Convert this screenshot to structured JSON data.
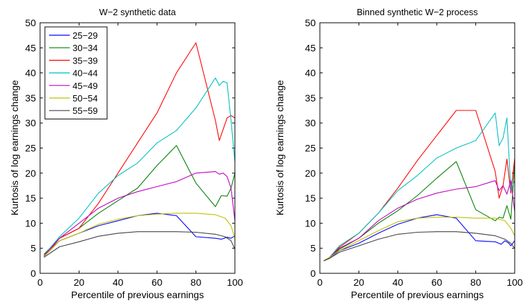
{
  "chart_data": [
    {
      "type": "line",
      "title": "W−2 synthetic data",
      "xlabel": "Percentile of previous earnings",
      "ylabel": "Kurtosis of log earnings change",
      "xlim": [
        0,
        100
      ],
      "ylim": [
        0,
        50
      ],
      "xticks": [
        "0",
        "20",
        "40",
        "60",
        "80",
        "100"
      ],
      "yticks": [
        "0",
        "5",
        "10",
        "15",
        "20",
        "25",
        "30",
        "35",
        "40",
        "45",
        "50"
      ],
      "grid": false,
      "legend": "top-left",
      "series": [
        {
          "name": "25−29",
          "color": "#0000ff",
          "x": [
            2,
            5,
            10,
            20,
            30,
            40,
            50,
            60,
            70,
            80,
            90,
            93,
            96,
            98,
            100
          ],
          "y": [
            3.5,
            4.5,
            6.5,
            8,
            9.5,
            10.5,
            11.5,
            12,
            11.5,
            7.3,
            7,
            6.8,
            7.2,
            7,
            7.5
          ]
        },
        {
          "name": "30−34",
          "color": "#008000",
          "x": [
            2,
            5,
            10,
            20,
            30,
            40,
            50,
            60,
            70,
            80,
            90,
            93,
            96,
            98,
            100
          ],
          "y": [
            3.8,
            5,
            7,
            9,
            12,
            14.5,
            17,
            21.5,
            25.5,
            18,
            13.3,
            15.5,
            15.4,
            17,
            20
          ]
        },
        {
          "name": "35−39",
          "color": "#ff0000",
          "x": [
            2,
            5,
            10,
            20,
            30,
            40,
            50,
            60,
            70,
            80,
            90,
            92,
            96,
            98,
            100
          ],
          "y": [
            3.5,
            4.5,
            7,
            9,
            14,
            20,
            26,
            32,
            40,
            46,
            30.5,
            26.5,
            31,
            31.5,
            31
          ]
        },
        {
          "name": "40−44",
          "color": "#00bfbf",
          "x": [
            2,
            5,
            10,
            20,
            30,
            40,
            50,
            60,
            70,
            80,
            90,
            92,
            94,
            96,
            98,
            100
          ],
          "y": [
            3.5,
            5,
            7.3,
            11,
            16,
            19.5,
            22,
            26,
            28.5,
            33,
            39,
            37.5,
            38.3,
            38,
            30.5,
            22.3
          ]
        },
        {
          "name": "45−49",
          "color": "#bf00bf",
          "x": [
            2,
            5,
            10,
            20,
            30,
            40,
            50,
            60,
            70,
            80,
            90,
            92,
            94,
            96,
            98,
            100
          ],
          "y": [
            3.5,
            4.8,
            7,
            10,
            13,
            15,
            16.3,
            17.3,
            18.3,
            20,
            20.3,
            19.8,
            20,
            19.3,
            17,
            10.5
          ]
        },
        {
          "name": "50−54",
          "color": "#bfbf00",
          "x": [
            2,
            5,
            10,
            20,
            30,
            40,
            50,
            60,
            70,
            80,
            90,
            95,
            98,
            100
          ],
          "y": [
            3.3,
            4.5,
            6.5,
            8,
            9.8,
            10.8,
            11.5,
            11.8,
            12,
            12,
            11.7,
            11,
            9.5,
            7
          ]
        },
        {
          "name": "55−59",
          "color": "#404040",
          "x": [
            2,
            5,
            10,
            20,
            30,
            40,
            50,
            60,
            70,
            80,
            90,
            95,
            98,
            100
          ],
          "y": [
            3.2,
            4,
            5.3,
            6.3,
            7.4,
            8,
            8.3,
            8.3,
            8.3,
            8.2,
            7.8,
            7.3,
            6.5,
            4.8
          ]
        }
      ]
    },
    {
      "type": "line",
      "title": "Binned synthetic W−2 process",
      "xlabel": "Percentile of previous earnings",
      "ylabel": "Kurtosis of log earnings change",
      "xlim": [
        0,
        100
      ],
      "ylim": [
        0,
        50
      ],
      "xticks": [
        "0",
        "20",
        "40",
        "60",
        "80",
        "100"
      ],
      "yticks": [
        "0",
        "5",
        "10",
        "15",
        "20",
        "25",
        "30",
        "35",
        "40",
        "45",
        "50"
      ],
      "grid": false,
      "series": [
        {
          "name": "25−29",
          "color": "#0000ff",
          "x": [
            2,
            5,
            10,
            20,
            30,
            40,
            50,
            60,
            70,
            80,
            90,
            93,
            95,
            97,
            98,
            100
          ],
          "y": [
            2.5,
            3,
            4.5,
            6,
            8,
            9.8,
            11,
            11.7,
            11,
            6.5,
            6.3,
            5.8,
            6.5,
            6,
            5.5,
            6.5
          ]
        },
        {
          "name": "30−34",
          "color": "#008000",
          "x": [
            2,
            5,
            10,
            20,
            30,
            40,
            50,
            60,
            70,
            80,
            90,
            92,
            94,
            96,
            98,
            100
          ],
          "y": [
            2.5,
            3,
            4.8,
            7,
            10,
            12.5,
            15.5,
            19,
            22.3,
            12.7,
            10.5,
            11.2,
            11,
            13.5,
            10.8,
            22
          ]
        },
        {
          "name": "35−39",
          "color": "#ff0000",
          "x": [
            2,
            5,
            10,
            20,
            30,
            40,
            50,
            60,
            70,
            80,
            90,
            92,
            94,
            96,
            98,
            100
          ],
          "y": [
            2.5,
            3.2,
            5.2,
            8,
            12,
            17,
            22.5,
            27.5,
            32.5,
            32.5,
            20.3,
            15,
            17.5,
            22.8,
            16,
            23
          ]
        },
        {
          "name": "40−44",
          "color": "#00bfbf",
          "x": [
            2,
            5,
            10,
            20,
            30,
            40,
            50,
            60,
            70,
            80,
            90,
            92,
            94,
            96,
            98,
            100
          ],
          "y": [
            2.5,
            3.2,
            5.5,
            8,
            12,
            16.5,
            19.5,
            23,
            25,
            26.5,
            32,
            25.5,
            27,
            31,
            16.5,
            18.5
          ]
        },
        {
          "name": "45−49",
          "color": "#bf00bf",
          "x": [
            2,
            5,
            10,
            20,
            30,
            40,
            50,
            60,
            70,
            80,
            90,
            92,
            94,
            96,
            98,
            100
          ],
          "y": [
            2.5,
            3.2,
            5,
            7,
            10.5,
            13,
            14.8,
            16,
            16.8,
            17.3,
            18.5,
            16.5,
            17.5,
            15.8,
            18.5,
            12.3
          ]
        },
        {
          "name": "50−54",
          "color": "#bfbf00",
          "x": [
            2,
            5,
            10,
            20,
            30,
            40,
            50,
            60,
            70,
            80,
            90,
            95,
            98,
            100
          ],
          "y": [
            2.5,
            3.2,
            4.5,
            6.5,
            8.5,
            10.3,
            11,
            11.2,
            11.2,
            11,
            11,
            10.5,
            9,
            7.5
          ]
        },
        {
          "name": "55−59",
          "color": "#404040",
          "x": [
            2,
            5,
            10,
            20,
            30,
            40,
            50,
            60,
            70,
            80,
            90,
            95,
            98,
            100
          ],
          "y": [
            2.5,
            3,
            4.2,
            5.5,
            6.8,
            7.8,
            8.2,
            8.3,
            8.3,
            8,
            7.5,
            6.8,
            6,
            5
          ]
        }
      ]
    }
  ]
}
